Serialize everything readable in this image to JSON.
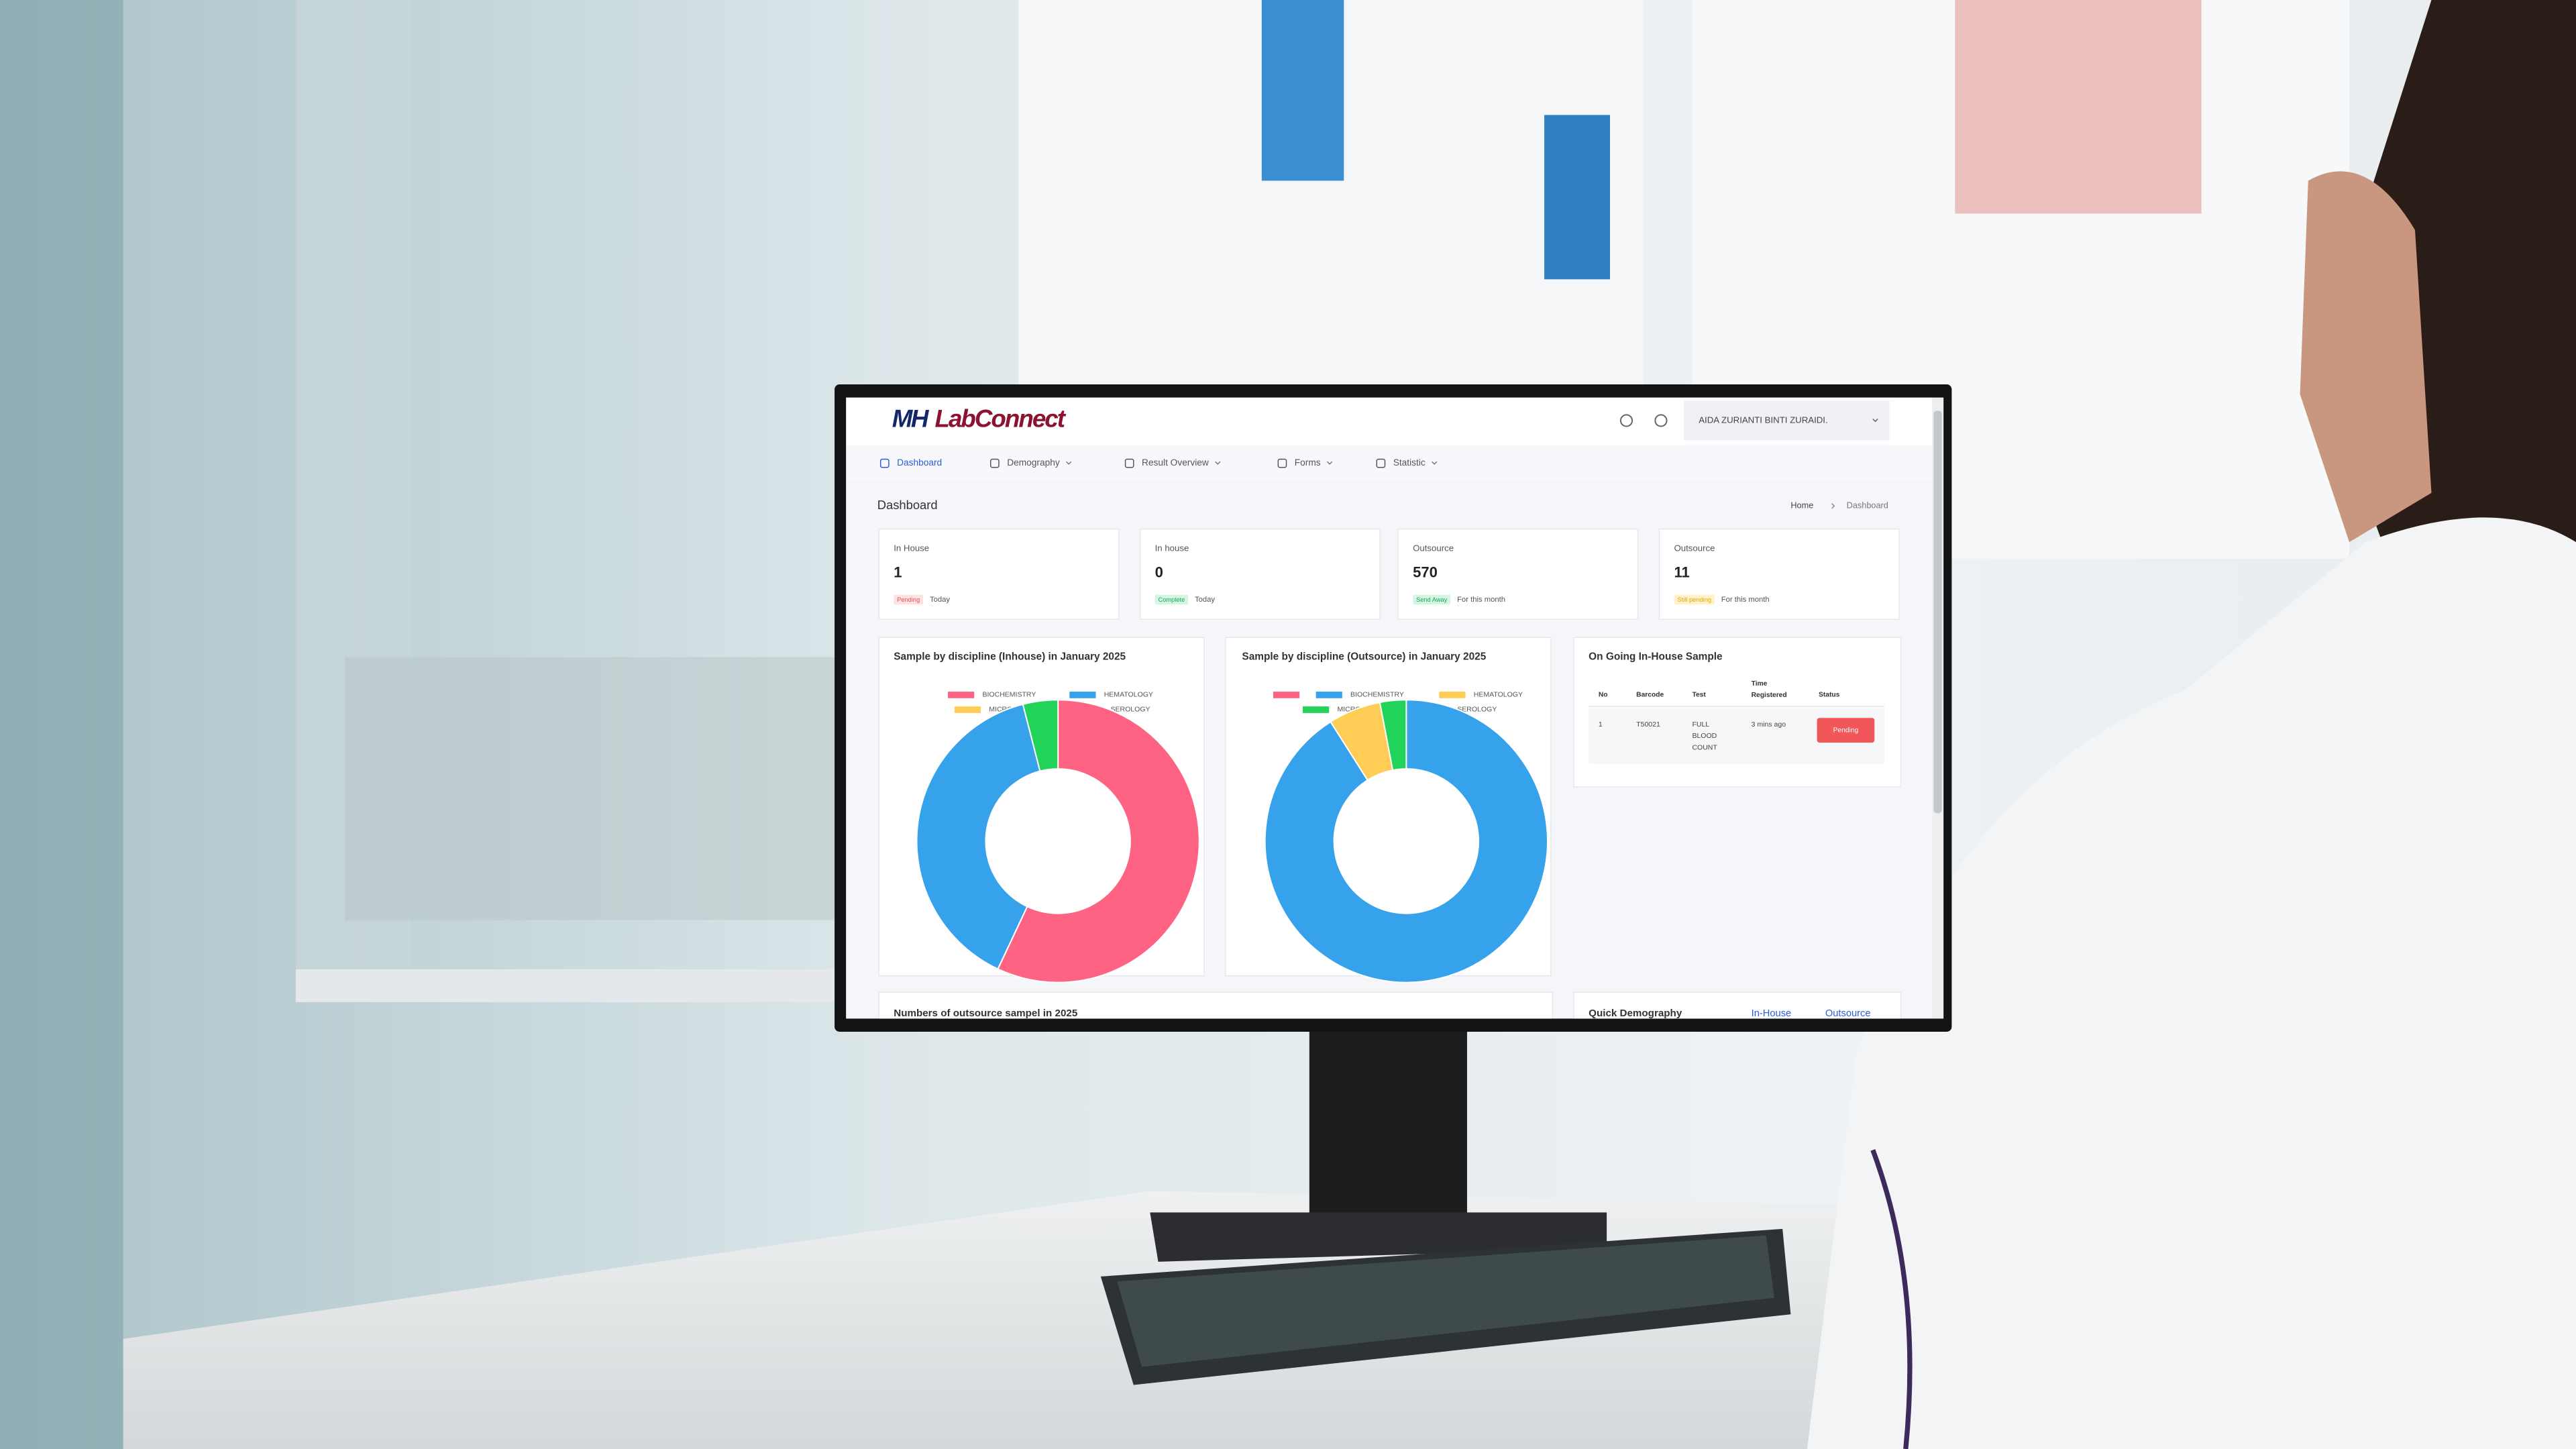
{
  "header": {
    "logo": [
      "MH",
      "LabConnect"
    ],
    "user": "AIDA ZURIANTI BINTI ZURAIDI."
  },
  "nav": [
    "Dashboard",
    "Demography",
    "Result Overview",
    "Forms",
    "Statistic"
  ],
  "page": {
    "title": "Dashboard",
    "breadcrumb": [
      "Home",
      "Dashboard"
    ]
  },
  "cards": [
    {
      "label": "In House",
      "value": "1",
      "badge": "Pending",
      "period": "Today"
    },
    {
      "label": "In house",
      "value": "0",
      "badge": "Complete",
      "period": "Today"
    },
    {
      "label": "Outsource",
      "value": "570",
      "badge": "Send Away",
      "period": "For this month"
    },
    {
      "label": "Outsource",
      "value": "11",
      "badge": "Still pending",
      "period": "For this month"
    }
  ],
  "chart_data": [
    {
      "type": "donut",
      "title": "Sample by discipline (Inhouse) in January 2025",
      "categories": [
        "BIOCHEMISTRY",
        "HEMATOLOGY",
        "MICROBIOLOGY",
        "SEROLOGY"
      ],
      "values": [
        57,
        39,
        0,
        4
      ],
      "colors": [
        "#ff6384",
        "#36a2eb",
        "#ffcd56",
        "#22d35a"
      ]
    },
    {
      "type": "donut",
      "title": "Sample by discipline (Outsource) in January 2025",
      "categories": [
        null,
        "BIOCHEMISTRY",
        "HEMATOLOGY",
        "MICROBIOLOGY",
        "SEROLOGY"
      ],
      "values": [
        0,
        91,
        6,
        3,
        0
      ],
      "colors": [
        "#ff6384",
        "#36a2eb",
        "#ffcd56",
        "#22d35a",
        "#9b1fd1"
      ]
    }
  ],
  "table": {
    "title": "On Going In-House Sample",
    "columns": [
      "No",
      "Barcode",
      "Test",
      "Time Registered",
      "Status"
    ],
    "rows": [
      [
        "1",
        "T50021",
        "FULL BLOOD COUNT",
        "3 mins ago",
        "Pending"
      ]
    ]
  },
  "bottom": {
    "chart_title": "Numbers of outsource sampel in 2025",
    "panel_title": "Quick Demography",
    "tabs": [
      "In-House",
      "Outsource"
    ]
  }
}
